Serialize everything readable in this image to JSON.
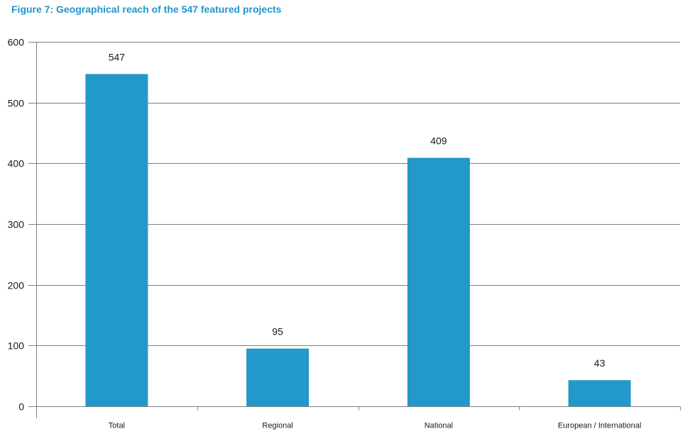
{
  "figure_title": "Figure 7: Geographical reach of the 547 featured projects",
  "colors": {
    "title": "#2196c9",
    "bar": "#2299c9",
    "grid": "#7f7f7f",
    "axis": "#7f7f7f",
    "text": "#1a1a1a"
  },
  "chart_data": {
    "type": "bar",
    "title": "Figure 7: Geographical reach of the 547 featured projects",
    "categories": [
      "Total",
      "Regional",
      "National",
      "European / International"
    ],
    "values": [
      547,
      95,
      409,
      43
    ],
    "data_labels": [
      "547",
      "95",
      "409",
      "43"
    ],
    "xlabel": "",
    "ylabel": "",
    "ylim": [
      0,
      600
    ],
    "yticks": [
      0,
      100,
      200,
      300,
      400,
      500,
      600
    ],
    "grid": true,
    "legend": "none"
  }
}
